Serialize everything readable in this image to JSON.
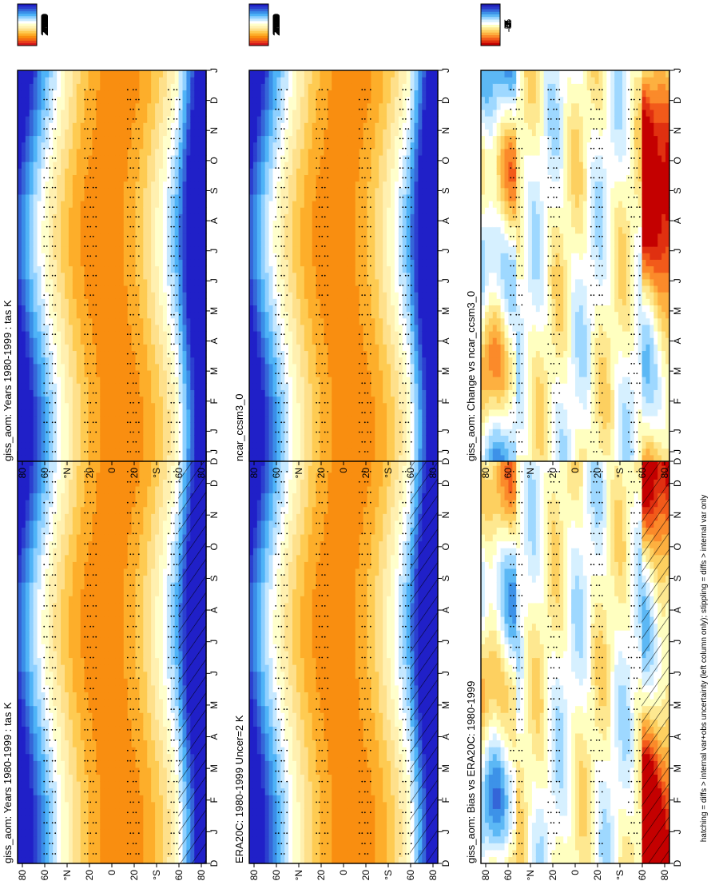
{
  "footer": "hatching = diffs > internal var+obs uncertainty (left column only); stippling = diffs > internal var only",
  "chart_data": [
    {
      "id": "p1",
      "type": "heatmap",
      "title": "giss_aom: Years 1980-1999 : tas K",
      "kind": "abs",
      "x_ticks": [
        "D",
        "J",
        "F",
        "M",
        "A",
        "M",
        "J",
        "J",
        "A",
        "S",
        "O",
        "N",
        "D",
        "J"
      ],
      "y_ticks": [
        "80",
        "60",
        "°N",
        "20",
        "0",
        "20",
        "°S",
        "60",
        "80"
      ],
      "colorbar_labels": [
        "320",
        "310",
        "300",
        "290",
        "280",
        "270",
        "260",
        "250",
        "240",
        "230",
        "220"
      ],
      "hatch": true,
      "stipple_rows": [
        58,
        20,
        -20,
        -58
      ]
    },
    {
      "id": "p2",
      "type": "heatmap",
      "title": "ERA20C: 1980-1999 Uncer=2 K",
      "kind": "abs",
      "x_ticks": [
        "D",
        "J",
        "F",
        "M",
        "A",
        "M",
        "J",
        "J",
        "A",
        "S",
        "O",
        "N",
        "D",
        "J"
      ],
      "y_ticks": [
        "80",
        "60",
        "°N",
        "20",
        "0",
        "20",
        "°S",
        "60",
        "80"
      ],
      "colorbar_labels": [
        "320",
        "310",
        "300",
        "290",
        "280",
        "270",
        "260",
        "250",
        "240",
        "230",
        "220"
      ],
      "hatch": true,
      "stipple_rows": [
        58,
        20,
        -20,
        -58
      ]
    },
    {
      "id": "p3",
      "type": "heatmap",
      "title": "giss_aom: Bias vs ERA20C: 1980-1999",
      "kind": "diff",
      "x_ticks": [
        "D",
        "J",
        "F",
        "M",
        "A",
        "M",
        "J",
        "J",
        "A",
        "S",
        "O",
        "N",
        "D",
        "J"
      ],
      "y_ticks": [
        "80",
        "60",
        "°N",
        "20",
        "0",
        "20",
        "°S",
        "60",
        "80"
      ],
      "colorbar_labels": [
        "5",
        "4",
        "3",
        "2",
        "1",
        "0",
        "-1",
        "-2",
        "-3",
        "-4",
        "-5"
      ],
      "hatch": true,
      "stipple_rows": [
        55,
        20,
        -20,
        -55
      ]
    },
    {
      "id": "p4",
      "type": "heatmap",
      "title": "giss_aom: Years 1980-1999 : tas K",
      "kind": "abs",
      "x_ticks": [
        "D",
        "J",
        "F",
        "M",
        "A",
        "M",
        "J",
        "J",
        "A",
        "S",
        "O",
        "N",
        "D",
        "J"
      ],
      "y_ticks": [
        "80",
        "60",
        "°N",
        "20",
        "0",
        "20",
        "°S",
        "60",
        "80"
      ],
      "colorbar_labels": [
        "320",
        "310",
        "300",
        "290",
        "280",
        "270",
        "260",
        "250",
        "240",
        "230",
        "220"
      ],
      "hatch": false,
      "stipple_rows": [
        58,
        20,
        -20,
        -58
      ]
    },
    {
      "id": "p5",
      "type": "heatmap",
      "title": "ncar_ccsm3_0",
      "kind": "abs",
      "x_ticks": [
        "D",
        "J",
        "F",
        "M",
        "A",
        "M",
        "J",
        "J",
        "A",
        "S",
        "O",
        "N",
        "D",
        "J"
      ],
      "y_ticks": [
        "80",
        "60",
        "°N",
        "20",
        "0",
        "20",
        "°S",
        "60",
        "80"
      ],
      "colorbar_labels": [
        "320",
        "310",
        "300",
        "290",
        "280",
        "270",
        "260",
        "250",
        "240",
        "230",
        "220"
      ],
      "hatch": false,
      "stipple_rows": [
        58,
        20,
        -20,
        -58
      ]
    },
    {
      "id": "p6",
      "type": "heatmap",
      "title": "giss_aom: Change vs ncar_ccsm3_0",
      "kind": "diff",
      "x_ticks": [
        "D",
        "J",
        "F",
        "M",
        "A",
        "M",
        "J",
        "J",
        "A",
        "S",
        "O",
        "N",
        "D",
        "J"
      ],
      "y_ticks": [
        "80",
        "60",
        "°N",
        "20",
        "0",
        "20",
        "°S",
        "60",
        "80"
      ],
      "colorbar_labels": [
        "5",
        "4",
        "3",
        "2",
        "1",
        "0",
        "-1",
        "-2",
        "-3",
        "-4",
        "-5"
      ],
      "hatch": false,
      "stipple_rows": [
        55,
        20,
        -20,
        -55
      ]
    }
  ],
  "colors": {
    "abs_scale": [
      "#d7191c",
      "#e8401a",
      "#f46d13",
      "#f98e10",
      "#fdae2a",
      "#fecb52",
      "#fee08b",
      "#fff0b0",
      "#ffffcc",
      "#ffffff",
      "#c6e8ff",
      "#8fd0ff",
      "#4fb3f7",
      "#3a8ee8",
      "#3566d8",
      "#2b3fcf",
      "#2020c8"
    ],
    "diff_scale": [
      "#c40000",
      "#e03010",
      "#f25a1a",
      "#fb8a2a",
      "#fdb040",
      "#fdd060",
      "#fee890",
      "#ffffc0",
      "#ffffff",
      "#d6f0ff",
      "#9ed8ff",
      "#5cb8f5",
      "#3d92e8",
      "#3465d8",
      "#2a3acb",
      "#1f1fb8"
    ]
  }
}
